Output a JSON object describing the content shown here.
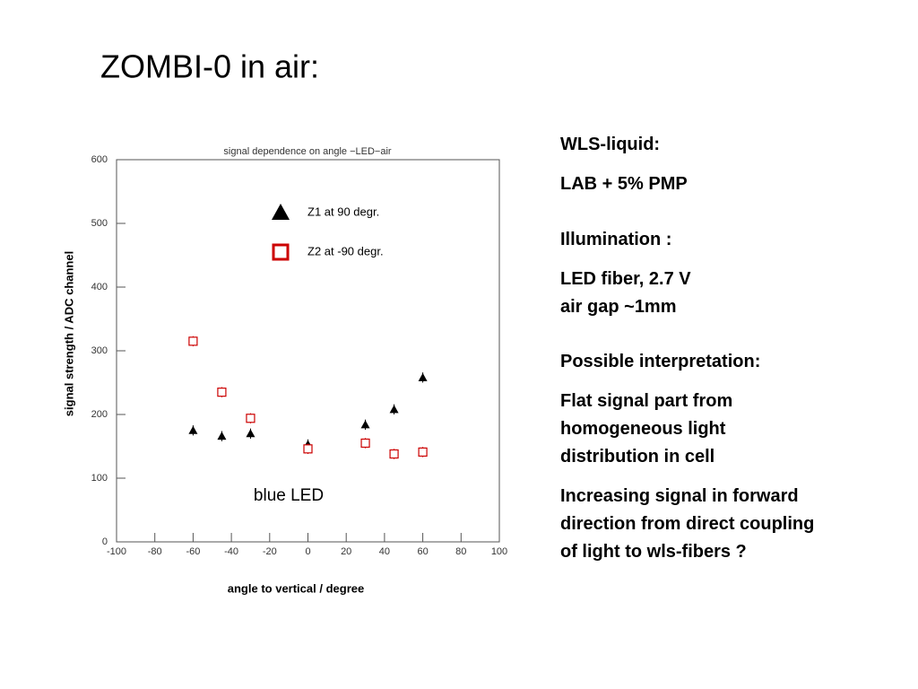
{
  "slide_title": "ZOMBI-0 in air:",
  "chart_data": {
    "type": "scatter",
    "title": "signal dependence on angle −LED−air",
    "xlabel": "angle to vertical / degree",
    "ylabel": "signal strength / ADC channel",
    "annotation": "blue LED",
    "xlim": [
      -100,
      100
    ],
    "xticks": [
      -100,
      -80,
      -60,
      -40,
      -20,
      0,
      20,
      40,
      60,
      80,
      100
    ],
    "ylim": [
      0,
      600
    ],
    "yticks": [
      0,
      100,
      200,
      300,
      400,
      500,
      600
    ],
    "series": [
      {
        "name": "Z1 at  90 degr.",
        "color": "#000000",
        "marker": "triangle",
        "x": [
          -60,
          -45,
          -30,
          0,
          30,
          45,
          60
        ],
        "values": [
          175,
          166,
          170,
          153,
          184,
          208,
          258
        ],
        "errors": [
          8,
          8,
          8,
          8,
          8,
          8,
          8
        ]
      },
      {
        "name": "Z2 at -90 degr.",
        "color": "#cc0000",
        "marker": "square",
        "x": [
          -60,
          -45,
          -30,
          0,
          30,
          45,
          60
        ],
        "values": [
          315,
          235,
          194,
          146,
          155,
          138,
          141
        ],
        "errors": [
          8,
          8,
          8,
          8,
          8,
          8,
          8
        ]
      }
    ]
  },
  "side_text": [
    "WLS-liquid:",
    "LAB + 5% PMP",
    "Illumination :",
    "LED fiber, 2.7 V",
    "air gap ~1mm",
    "Possible interpretation:",
    "Flat signal part from",
    "homogeneous light",
    "distribution in cell",
    "Increasing signal in forward",
    "direction from direct coupling",
    "of light to wls-fibers ?"
  ]
}
